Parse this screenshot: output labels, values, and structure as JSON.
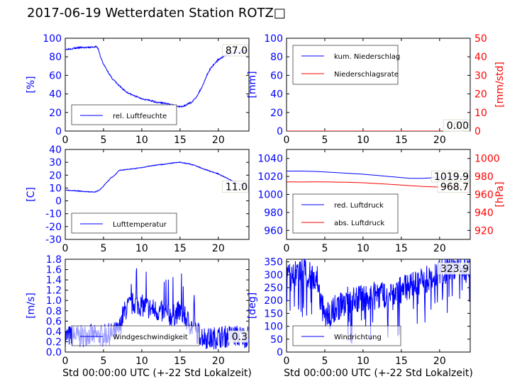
{
  "title": "2017-06-19 Wetterdaten Station ROTZ□",
  "colors": {
    "primary": "#0000ff",
    "secondary": "#ff0000",
    "axis": "#000000"
  },
  "chart_data": [
    {
      "id": "humidity",
      "type": "line",
      "ylabel": "[%]",
      "ylim": [
        0,
        100
      ],
      "yticks": [
        0,
        20,
        40,
        60,
        80,
        100
      ],
      "xlim": [
        0,
        24
      ],
      "xticks": [
        0,
        5,
        10,
        15,
        20
      ],
      "last_value_label": "87.0",
      "legend": {
        "placement": "lower-left",
        "entries": [
          "rel. Luftfeuchte"
        ]
      },
      "series": [
        {
          "name": "rel. Luftfeuchte",
          "color": "#0000ff",
          "noise": 0.8,
          "x": [
            0,
            1,
            2,
            3,
            4,
            4.3,
            4.6,
            5,
            5.5,
            6,
            7,
            8,
            9,
            10,
            11,
            12,
            13,
            14,
            15,
            15.5,
            16,
            16.5,
            17,
            17.5,
            18,
            18.5,
            19,
            20,
            21,
            22,
            23,
            24
          ],
          "y": [
            88,
            89,
            90,
            90,
            91,
            89,
            80,
            72,
            65,
            58,
            49,
            42,
            38,
            35,
            33,
            31,
            30,
            28,
            26,
            27,
            29,
            31,
            35,
            42,
            50,
            60,
            68,
            77,
            82,
            84,
            86,
            87
          ]
        }
      ]
    },
    {
      "id": "precip",
      "type": "line",
      "ylabel": "[mm]",
      "ylabel_right": "[mm/std]",
      "ylim": [
        0,
        100
      ],
      "yticks": [
        0,
        20,
        40,
        60,
        80,
        100
      ],
      "ylim_right": [
        0,
        50
      ],
      "yticks_right": [
        0,
        10,
        20,
        30,
        40,
        50
      ],
      "xlim": [
        0,
        24
      ],
      "xticks": [
        0,
        5,
        10,
        15,
        20
      ],
      "last_value_labels": [
        "0.0",
        "0.0"
      ],
      "legend": {
        "placement": "upper-left",
        "entries": [
          "kum. Niederschlag",
          "Niederschlagsrate"
        ]
      },
      "series": [
        {
          "name": "kum. Niederschlag",
          "color": "#0000ff",
          "noise": 0,
          "x": [
            0,
            24
          ],
          "y": [
            0,
            0
          ]
        },
        {
          "name": "Niederschlagsrate",
          "color": "#ff0000",
          "noise": 0,
          "axis": "right",
          "x": [
            0,
            24
          ],
          "y": [
            0,
            0
          ]
        }
      ]
    },
    {
      "id": "temperature",
      "type": "line",
      "ylabel": "[C]",
      "ylim": [
        -30,
        40
      ],
      "yticks": [
        -30,
        -20,
        -10,
        0,
        10,
        20,
        30,
        40
      ],
      "xlim": [
        0,
        24
      ],
      "xticks": [
        0,
        5,
        10,
        15,
        20
      ],
      "last_value_label": "11.0",
      "legend": {
        "placement": "lower-left",
        "entries": [
          "Lufttemperatur"
        ]
      },
      "series": [
        {
          "name": "Lufttemperatur",
          "color": "#0000ff",
          "noise": 0.3,
          "x": [
            0,
            1,
            2,
            3,
            4,
            4.5,
            5,
            5.5,
            6,
            6.5,
            7,
            8,
            9,
            10,
            11,
            12,
            13,
            14,
            15,
            15.5,
            16,
            17,
            18,
            19,
            20,
            21,
            22,
            23,
            24
          ],
          "y": [
            8.5,
            8,
            7.5,
            7,
            7,
            8.5,
            11.5,
            15,
            18,
            20,
            23.5,
            24.5,
            25,
            26,
            27,
            28,
            28.5,
            29.5,
            30,
            29.5,
            29,
            27.5,
            25,
            23,
            21,
            18,
            15,
            12.5,
            11
          ]
        }
      ]
    },
    {
      "id": "pressure",
      "type": "line",
      "ylabel_right": "[hPa]",
      "ylim": [
        950,
        1050
      ],
      "yticks": [
        960,
        980,
        1000,
        1020,
        1040
      ],
      "ylim_right": [
        910,
        1010
      ],
      "yticks_right": [
        920,
        940,
        960,
        980,
        1000
      ],
      "xlim": [
        0,
        24
      ],
      "xticks": [
        0,
        5,
        10,
        15,
        20
      ],
      "last_value_labels": [
        "1019.9",
        "968.7"
      ],
      "legend": {
        "placement": "lower-left",
        "entries": [
          "red. Luftdruck",
          "abs. Luftdruck"
        ]
      },
      "series": [
        {
          "name": "red. Luftdruck",
          "color": "#0000ff",
          "noise": 0,
          "axis": "left",
          "x": [
            0,
            2,
            4,
            6,
            8,
            10,
            12,
            14,
            16,
            17,
            18,
            20,
            22,
            24
          ],
          "y": [
            1026,
            1026,
            1025.5,
            1024.5,
            1023.5,
            1022.5,
            1021,
            1019.5,
            1018,
            1017.8,
            1018,
            1019,
            1019.5,
            1019.9
          ]
        },
        {
          "name": "abs. Luftdruck",
          "color": "#ff0000",
          "noise": 0,
          "axis": "right",
          "x": [
            0,
            2,
            4,
            6,
            8,
            10,
            12,
            14,
            16,
            18,
            20,
            22,
            24
          ],
          "y": [
            974,
            973.8,
            974,
            973.8,
            973.5,
            973,
            972,
            971,
            969.8,
            968.8,
            968.2,
            968.5,
            968.7
          ]
        }
      ]
    },
    {
      "id": "windspeed",
      "type": "line",
      "ylabel": "[m/s]",
      "xlabel": "Std 00:00:00 UTC (+-22 Std Lokalzeit)",
      "ylim": [
        0,
        1.8
      ],
      "yticks": [
        0.0,
        0.2,
        0.4,
        0.6,
        0.8,
        1.0,
        1.2,
        1.4,
        1.6,
        1.8
      ],
      "xlim": [
        0,
        24
      ],
      "xticks": [
        0,
        5,
        10,
        15,
        20
      ],
      "last_value_label": "0.3",
      "legend": {
        "placement": "lower-left",
        "entries": [
          "Windgeschwindigkeit"
        ]
      },
      "series": [
        {
          "name": "Windgeschwindigkeit",
          "color": "#0000ff",
          "noise": 0.22,
          "seed": 7,
          "x": [
            0,
            1,
            2,
            3,
            4,
            5,
            6,
            7,
            7.5,
            8,
            9,
            10,
            11,
            12,
            13,
            14,
            15,
            16,
            17,
            18,
            19,
            20,
            21,
            22,
            23,
            24
          ],
          "y": [
            0.3,
            0.32,
            0.3,
            0.35,
            0.3,
            0.32,
            0.35,
            0.4,
            0.7,
            0.85,
            0.95,
            0.9,
            0.85,
            0.8,
            0.75,
            0.7,
            0.8,
            0.6,
            0.4,
            0.3,
            0.25,
            0.3,
            0.3,
            0.32,
            0.3,
            0.3
          ]
        }
      ]
    },
    {
      "id": "winddir",
      "type": "line",
      "ylabel": "[deg]",
      "xlabel": "Std 00:00:00 UTC (+-22 Std Lokalzeit)",
      "ylim": [
        0,
        360
      ],
      "yticks": [
        0,
        50,
        100,
        150,
        200,
        250,
        300,
        350
      ],
      "xlim": [
        0,
        24
      ],
      "xticks": [
        0,
        5,
        10,
        15,
        20
      ],
      "last_value_label": "323.9",
      "legend": {
        "placement": "lower-left",
        "entries": [
          "Windrichtung"
        ]
      },
      "series": [
        {
          "name": "Windrichtung",
          "color": "#0000ff",
          "noise": 55,
          "seed": 13,
          "x": [
            0,
            1,
            2,
            3,
            4,
            4.5,
            5,
            6,
            7,
            8,
            9,
            10,
            11,
            12,
            13,
            14,
            15,
            16,
            17,
            18,
            19,
            20,
            21,
            22,
            23,
            24
          ],
          "y": [
            280,
            300,
            310,
            300,
            290,
            180,
            150,
            160,
            180,
            200,
            210,
            210,
            215,
            220,
            225,
            230,
            240,
            250,
            265,
            280,
            295,
            310,
            320,
            322,
            323,
            324
          ]
        }
      ]
    }
  ]
}
